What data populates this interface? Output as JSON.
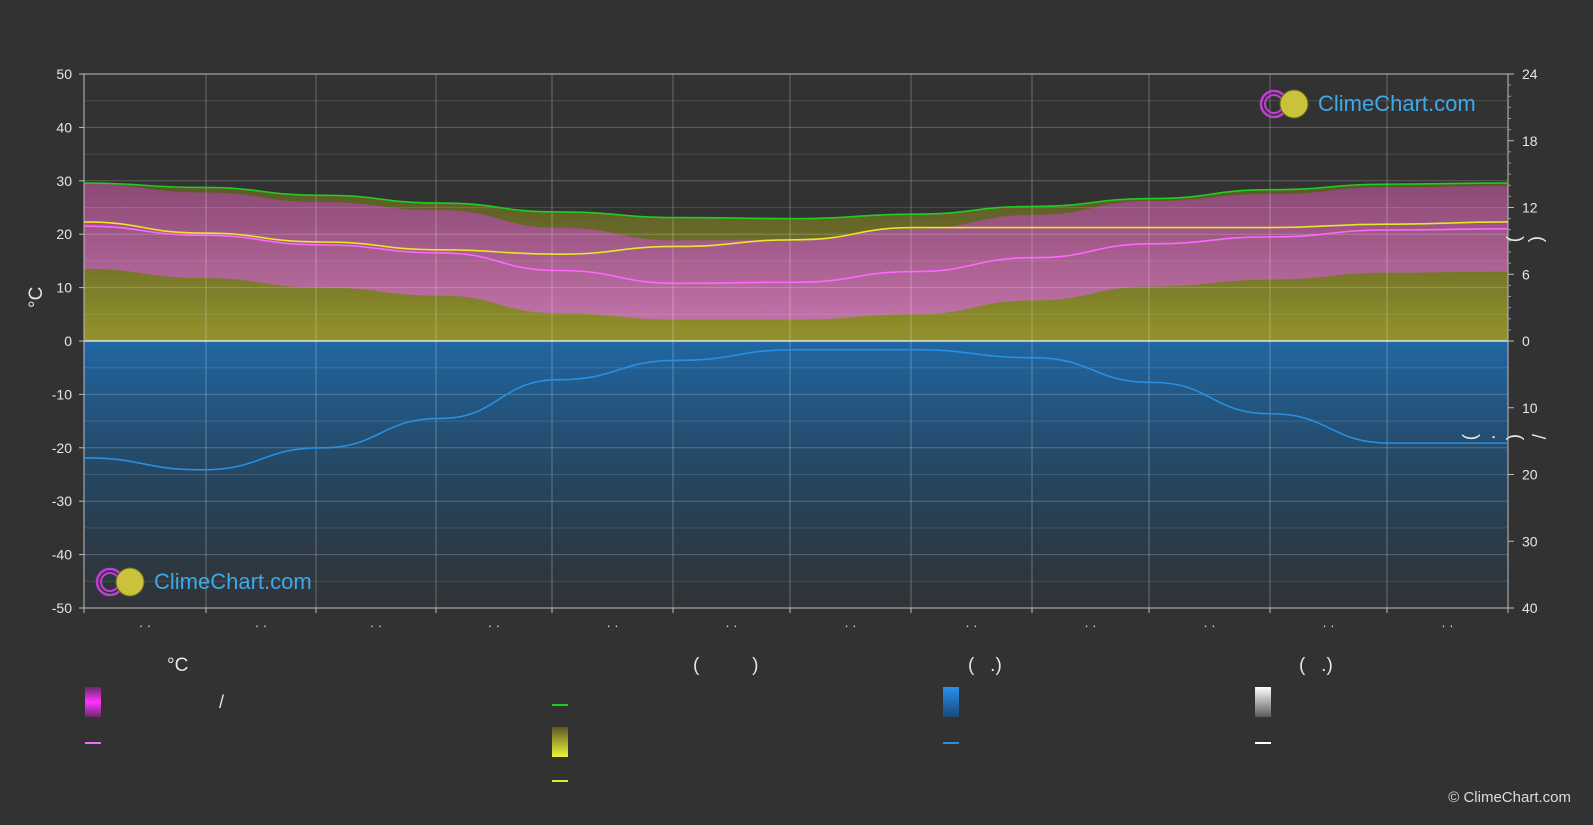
{
  "chart_data": {
    "type": "area",
    "title": "",
    "y_left_label": "°C",
    "y_left_ticks": [
      50,
      40,
      30,
      20,
      10,
      0,
      -10,
      -20,
      -30,
      -40,
      -50
    ],
    "y_left_range": [
      -50,
      50
    ],
    "y_right_top_ticks": [
      24,
      18,
      12,
      6,
      0
    ],
    "y_right_top_range": [
      0,
      24
    ],
    "y_right_bottom_ticks": [
      0,
      10,
      20,
      30,
      40
    ],
    "y_right_bottom_range": [
      0,
      40
    ],
    "y_right_top_label": "(  )",
    "y_right_bottom_label": "/   (  ·  )",
    "x_tick_labels": [
      "· ·",
      "· ·",
      "· ·",
      "· ·",
      "· ·",
      "· ·",
      "· ·",
      "· ·",
      "· ·",
      "· ·",
      "· ·",
      "· ·"
    ],
    "grid": true,
    "series": [
      {
        "key": "daylight",
        "unit": "hours",
        "axis": "right-top",
        "color": "#22cc22",
        "values": [
          14.2,
          13.8,
          13.1,
          12.4,
          11.6,
          11.1,
          11.0,
          11.4,
          12.1,
          12.8,
          13.6,
          14.1,
          14.2
        ]
      },
      {
        "key": "sunshine",
        "unit": "hours",
        "axis": "right-top",
        "color": "#e6e62a",
        "values": [
          10.7,
          9.7,
          8.9,
          8.2,
          7.8,
          8.5,
          9.1,
          10.2,
          10.2,
          10.2,
          10.2,
          10.5,
          10.7
        ]
      },
      {
        "key": "temperature",
        "unit": "°C",
        "axis": "left",
        "color": "#ff66ff",
        "values": [
          21.5,
          19.8,
          18.0,
          16.5,
          13.2,
          10.8,
          11.0,
          13.0,
          15.6,
          18.2,
          19.5,
          20.8,
          21.0
        ]
      },
      {
        "key": "precipitation",
        "unit": "mm",
        "axis": "right-bottom",
        "color": "#2a8fe0",
        "values": [
          17.5,
          19.3,
          16.0,
          11.6,
          5.8,
          2.9,
          1.3,
          1.3,
          2.5,
          6.2,
          10.9,
          15.3,
          15.3
        ]
      }
    ]
  },
  "legend": {
    "col1": {
      "title": "°C",
      "item1": "/",
      "item2": ""
    },
    "col2": {
      "title": "(          )",
      "item1": "",
      "item2": "",
      "item3": ""
    },
    "col3": {
      "title": "(   .)",
      "item1": "",
      "item2": ""
    },
    "col4": {
      "title": "(   .)",
      "item1": "",
      "item2": ""
    }
  },
  "colors": {
    "background": "#323232",
    "temp_band": "#d23fd2",
    "sunshine_band": "#9a9a2a",
    "precip_band": "#1f5f99",
    "daylight": "#22cc22",
    "sunshine": "#e6e62a",
    "temperature": "#ff66ff",
    "precipitation": "#2a8fe0"
  },
  "brand": {
    "logo_text": "ClimeChart.com",
    "copyright": "© ClimeChart.com"
  }
}
